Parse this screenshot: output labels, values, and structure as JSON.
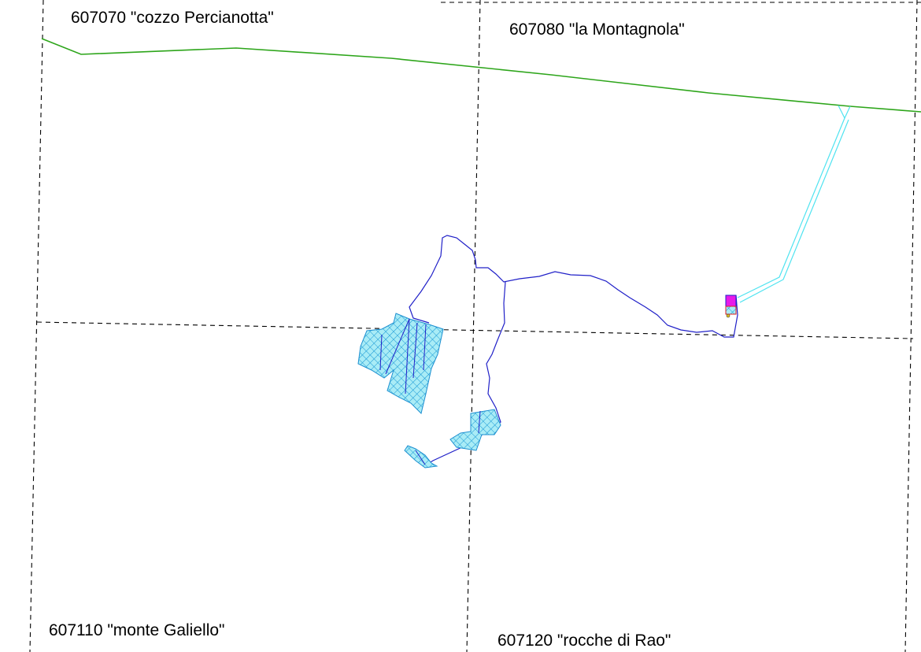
{
  "sheets": [
    {
      "id": "nw",
      "label": "607070 \"cozzo Percianotta\""
    },
    {
      "id": "ne",
      "label": "607080 \"la Montagnola\""
    },
    {
      "id": "sw",
      "label": "607110 \"monte Galiello\""
    },
    {
      "id": "se",
      "label": "607120 \"rocche di Rao\""
    }
  ],
  "colors": {
    "grid": "#000000",
    "boundary": "#2da51a",
    "route": "#2020c8",
    "area_fill": "#5ad2ee",
    "area_hatch": "#1c8fd0",
    "cyan_line": "#4fe3f0",
    "station_magenta": "#e81ae8",
    "station_red": "#e02020"
  }
}
